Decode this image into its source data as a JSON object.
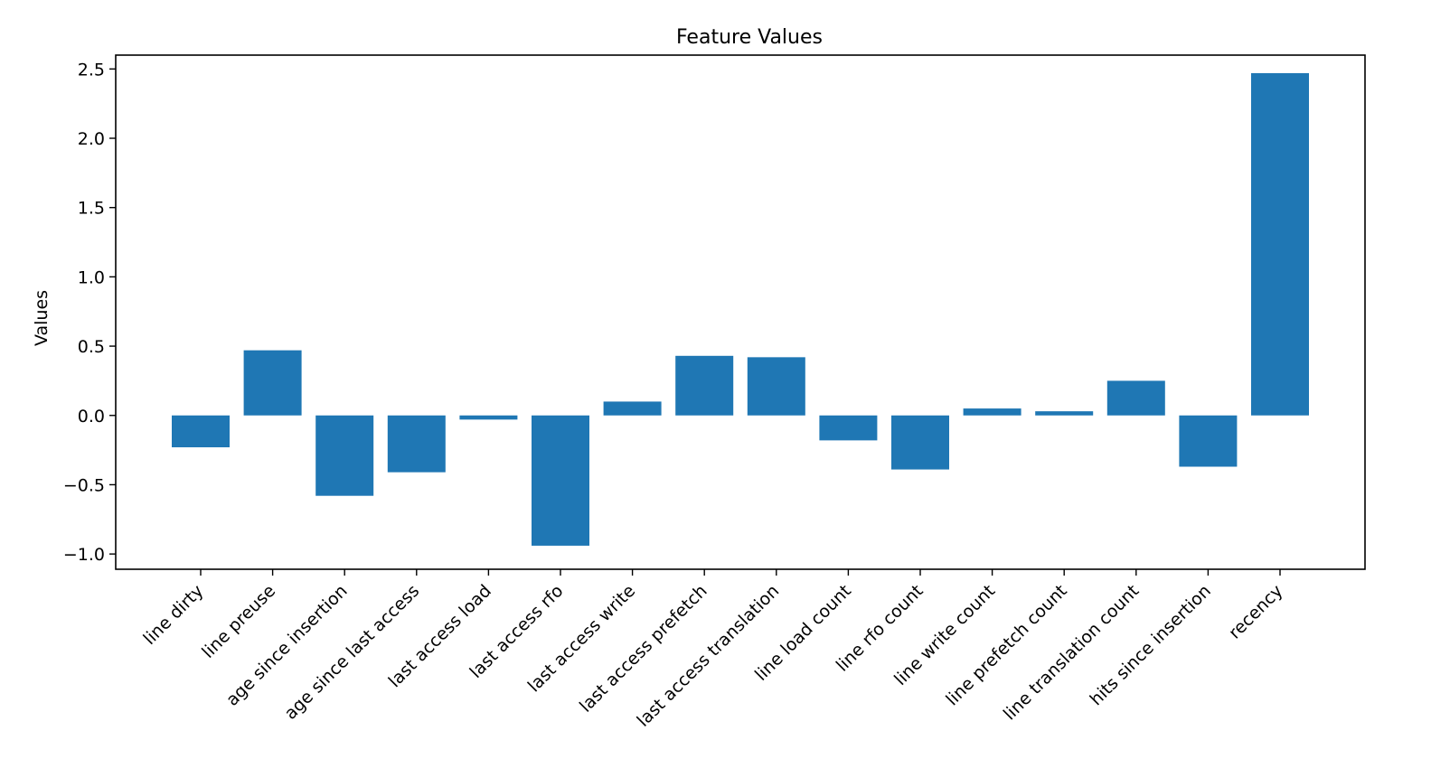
{
  "chart_data": {
    "type": "bar",
    "title": "Feature Values",
    "xlabel": "",
    "ylabel": "Values",
    "categories": [
      "line dirty",
      "line preuse",
      "age since insertion",
      "age since last access",
      "last access load",
      "last access rfo",
      "last access write",
      "last access prefetch",
      "last access translation",
      "line load count",
      "line rfo count",
      "line write count",
      "line prefetch count",
      "line translation count",
      "hits since insertion",
      "recency"
    ],
    "values": [
      -0.23,
      0.47,
      -0.58,
      -0.41,
      -0.03,
      -0.94,
      0.1,
      0.43,
      0.42,
      -0.18,
      -0.39,
      0.05,
      0.03,
      0.25,
      -0.37,
      2.47
    ],
    "ylim": [
      -1.11,
      2.6
    ],
    "yticks": [
      -1.0,
      -0.5,
      0.0,
      0.5,
      1.0,
      1.5,
      2.0,
      2.5
    ],
    "ytick_labels": [
      "−1.0",
      "−0.5",
      "0.0",
      "0.5",
      "1.0",
      "1.5",
      "2.0",
      "2.5"
    ],
    "bar_color": "#1f77b4",
    "grid": false,
    "legend": "none"
  }
}
